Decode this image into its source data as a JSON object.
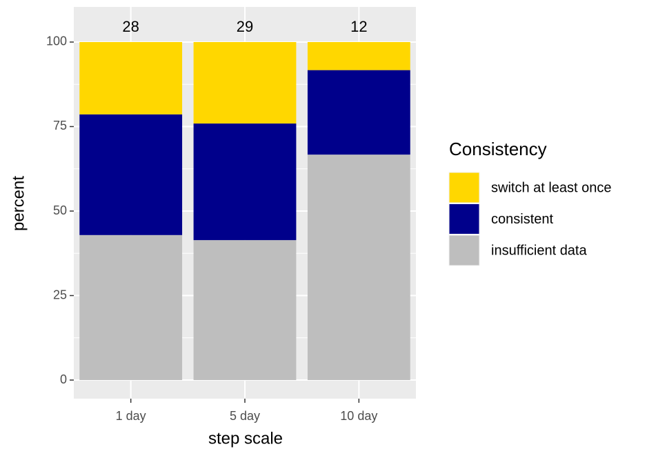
{
  "chart_data": {
    "type": "bar",
    "stacked": true,
    "xlabel": "step scale",
    "ylabel": "percent",
    "categories": [
      "1 day",
      "5 day",
      "10 day"
    ],
    "counts": [
      28,
      29,
      12
    ],
    "series": [
      {
        "name": "insufficient data",
        "color": "#bebebe",
        "values": [
          42.9,
          41.4,
          66.7
        ]
      },
      {
        "name": "consistent",
        "color": "#00008b",
        "values": [
          35.7,
          34.5,
          25.0
        ]
      },
      {
        "name": "switch at least once",
        "color": "#ffd700",
        "values": [
          21.4,
          24.1,
          8.3
        ]
      }
    ],
    "legend_title": "Consistency",
    "legend": "right",
    "ylim": [
      -5.5,
      110.4
    ],
    "yticks": [
      0,
      25,
      50,
      75,
      100
    ],
    "grid": true
  }
}
